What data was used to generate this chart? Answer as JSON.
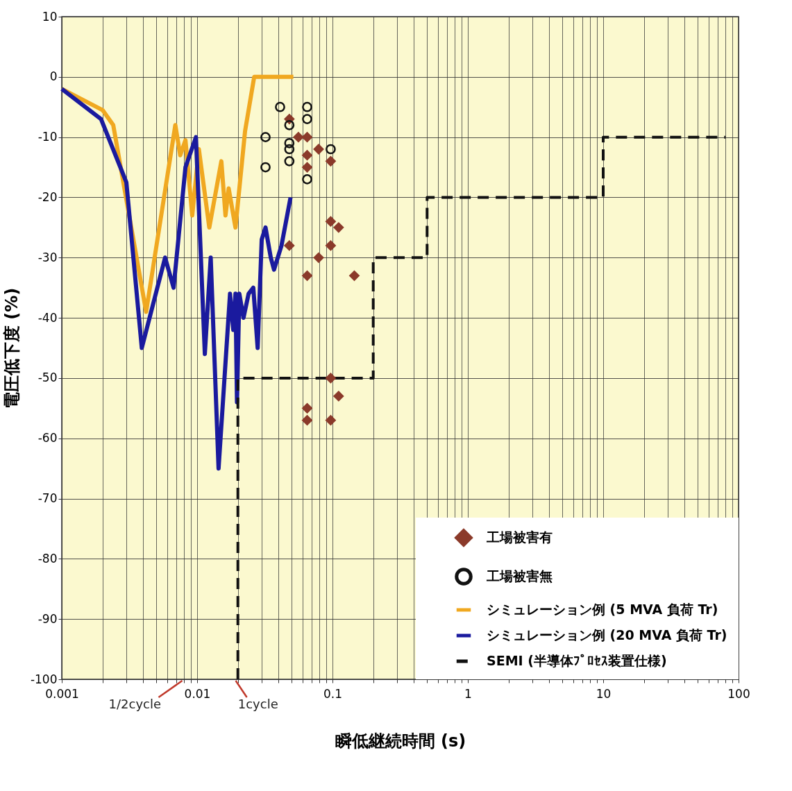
{
  "chart_data": {
    "type": "line",
    "xlabel": "瞬低継続時間 (s)",
    "ylabel": "電圧低下度 (%)",
    "log": "x",
    "grid": true,
    "legend": "bottom right",
    "xlim": [
      0.001,
      100
    ],
    "ylim": [
      -100,
      10
    ],
    "xticks": [
      0.001,
      {
        "value": 0.002,
        "label": null
      },
      {
        "value": 0.003,
        "label": null
      },
      {
        "value": 0.004,
        "label": null
      },
      {
        "value": 0.005,
        "label": null
      },
      {
        "value": 0.006,
        "label": null
      },
      {
        "value": 0.007,
        "label": null
      },
      {
        "value": 0.008,
        "label": null
      },
      {
        "value": 0.009,
        "label": null
      },
      0.01,
      {
        "value": 0.02,
        "label": null
      },
      {
        "value": 0.03,
        "label": null
      },
      {
        "value": 0.04,
        "label": null
      },
      {
        "value": 0.05,
        "label": null
      },
      {
        "value": 0.06,
        "label": null
      },
      {
        "value": 0.07,
        "label": null
      },
      {
        "value": 0.08,
        "label": null
      },
      {
        "value": 0.09,
        "label": null
      },
      0.1,
      {
        "value": 0.2,
        "label": null
      },
      {
        "value": 0.3,
        "label": null
      },
      {
        "value": 0.4,
        "label": null
      },
      {
        "value": 0.5,
        "label": null
      },
      {
        "value": 0.6,
        "label": null
      },
      {
        "value": 0.7,
        "label": null
      },
      {
        "value": 0.8,
        "label": null
      },
      {
        "value": 0.9,
        "label": null
      },
      1,
      {
        "value": 2,
        "label": null
      },
      {
        "value": 3,
        "label": null
      },
      {
        "value": 4,
        "label": null
      },
      {
        "value": 5,
        "label": null
      },
      {
        "value": 6,
        "label": null
      },
      {
        "value": 7,
        "label": null
      },
      {
        "value": 8,
        "label": null
      },
      {
        "value": 9,
        "label": null
      },
      10,
      {
        "value": 20,
        "label": null
      },
      {
        "value": 30,
        "label": null
      },
      {
        "value": 40,
        "label": null
      },
      {
        "value": 50,
        "label": null
      },
      {
        "value": 60,
        "label": null
      },
      {
        "value": 70,
        "label": null
      },
      {
        "value": 80,
        "label": null
      },
      {
        "value": 90,
        "label": null
      },
      100
    ],
    "yticks": [
      -100,
      -90,
      -80,
      -70,
      -60,
      -50,
      -40,
      -30,
      -20,
      -10,
      0,
      10
    ],
    "annotations": [
      "1/2cycle",
      "1cycle"
    ],
    "series": [
      {
        "name": "工場被害有",
        "type": "scatter",
        "marker": "diamond",
        "color": "#8b3a2a",
        "x": [
          0.048,
          0.056,
          0.065,
          0.065,
          0.079,
          0.097,
          0.065,
          0.097,
          0.111,
          0.048,
          0.097,
          0.079,
          0.065,
          0.145,
          0.097,
          0.111,
          0.065,
          0.065,
          0.097
        ],
        "values": [
          -7,
          -10,
          -10,
          -13,
          -12,
          -14,
          -15,
          -24,
          -25,
          -28,
          -28,
          -30,
          -33,
          -33,
          -50,
          -53,
          -55,
          -57,
          -57
        ]
      },
      {
        "name": "工場被害無",
        "type": "scatter",
        "marker": "circle",
        "color": "#111111",
        "x": [
          0.041,
          0.065,
          0.065,
          0.032,
          0.048,
          0.048,
          0.048,
          0.048,
          0.097,
          0.032,
          0.065
        ],
        "values": [
          -5,
          -5,
          -7,
          -10,
          -8,
          -11,
          -12,
          -14,
          -12,
          -15,
          -17
        ]
      },
      {
        "name": "シミュレーション例 (5 MVA 負荷 Tr)",
        "type": "line",
        "color": "#f0a820",
        "x": [
          0.001,
          0.002,
          0.0024,
          0.0042,
          0.0069,
          0.0075,
          0.0082,
          0.0092,
          0.0103,
          0.0123,
          0.0151,
          0.0162,
          0.0171,
          0.0192,
          0.0226,
          0.0264,
          0.0514
        ],
        "values": [
          -2,
          -5.5,
          -8,
          -39,
          -8,
          -13,
          -10.5,
          -23,
          -12,
          -25,
          -14,
          -23,
          -18.5,
          -25,
          -9,
          0,
          0
        ]
      },
      {
        "name": "シミュレーション例 (20 MVA 負荷 Tr)",
        "type": "line",
        "color": "#1a1a9e",
        "x": [
          0.001,
          0.00195,
          0.003,
          0.0039,
          0.0058,
          0.0067,
          0.0082,
          0.0098,
          0.0114,
          0.0126,
          0.0144,
          0.0175,
          0.0185,
          0.0192,
          0.0197,
          0.0205,
          0.022,
          0.024,
          0.026,
          0.028,
          0.03,
          0.032,
          0.035,
          0.037,
          0.042,
          0.049
        ],
        "values": [
          -2,
          -7,
          -17.5,
          -45,
          -30,
          -35,
          -15,
          -10,
          -46,
          -30,
          -65,
          -36,
          -42,
          -36,
          -54,
          -36,
          -40,
          -36,
          -35,
          -45,
          -27,
          -25,
          -30,
          -32,
          -28,
          -20
        ]
      },
      {
        "name": "SEMI (半導体ﾌﾟﾛｾｽ装置仕様)",
        "type": "line",
        "line_style": "dashed",
        "color": "#111111",
        "x": [
          0.02,
          0.02,
          0.2,
          0.2,
          0.5,
          0.5,
          10,
          10,
          80
        ],
        "values": [
          -100,
          -50,
          -50,
          -30,
          -30,
          -20,
          -20,
          -10,
          -10
        ]
      }
    ]
  }
}
